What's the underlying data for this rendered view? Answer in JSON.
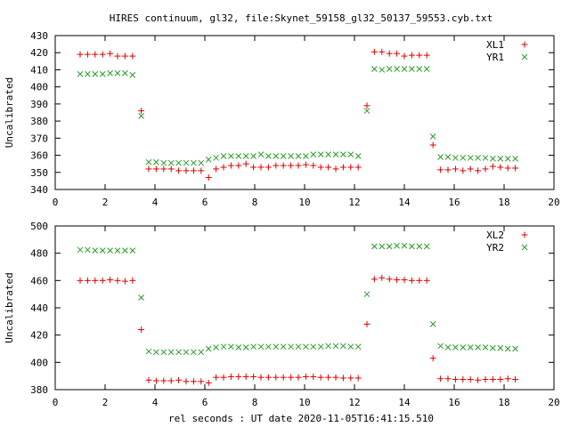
{
  "title": "HIRES continuum, gl32, file:Skynet_59158_gl32_50137_59553.cyb.txt",
  "xlabel": "rel seconds : UT date 2020-11-05T16:41:15.510",
  "colors": {
    "red": "#dd0000",
    "green": "#2a9a2a"
  },
  "chart_data": [
    {
      "type": "scatter",
      "ylabel": "Uncalibrated",
      "xlim": [
        0,
        20
      ],
      "ylim": [
        340,
        430
      ],
      "xticks": [
        0,
        2,
        4,
        6,
        8,
        10,
        12,
        14,
        16,
        18,
        20
      ],
      "yticks": [
        340,
        350,
        360,
        370,
        380,
        390,
        400,
        410,
        420,
        430
      ],
      "legend": "top-right",
      "series": [
        {
          "name": "XL1",
          "marker": "plus",
          "color": "#dd0000",
          "x": [
            1.0,
            1.3,
            1.6,
            1.9,
            2.2,
            2.5,
            2.8,
            3.1,
            3.45,
            3.75,
            4.05,
            4.35,
            4.65,
            4.95,
            5.25,
            5.55,
            5.85,
            6.15,
            6.45,
            6.75,
            7.05,
            7.35,
            7.65,
            7.95,
            8.25,
            8.55,
            8.85,
            9.15,
            9.45,
            9.75,
            10.05,
            10.35,
            10.65,
            10.95,
            11.25,
            11.55,
            11.85,
            12.15,
            12.5,
            12.8,
            13.1,
            13.4,
            13.7,
            14.0,
            14.3,
            14.6,
            14.9,
            15.15,
            15.45,
            15.75,
            16.05,
            16.35,
            16.65,
            16.95,
            17.25,
            17.55,
            17.85,
            18.15,
            18.45
          ],
          "y": [
            419,
            419,
            419,
            419,
            419.5,
            418,
            418,
            418,
            386,
            352,
            352,
            352,
            352,
            351,
            351,
            351,
            351,
            347,
            352,
            353,
            354,
            354,
            355,
            353,
            353,
            353,
            354,
            354,
            354,
            354,
            354.5,
            354,
            353,
            353,
            352,
            353,
            353,
            353,
            389,
            420.5,
            420.5,
            419.5,
            419.5,
            418,
            418.5,
            418.5,
            418.5,
            366,
            351.5,
            351.5,
            352,
            351,
            352,
            351,
            352,
            353.5,
            353,
            352.5,
            352.5
          ]
        },
        {
          "name": "YR1",
          "marker": "cross",
          "color": "#2a9a2a",
          "x": [
            1.0,
            1.3,
            1.6,
            1.9,
            2.2,
            2.5,
            2.8,
            3.1,
            3.45,
            3.75,
            4.05,
            4.35,
            4.65,
            4.95,
            5.25,
            5.55,
            5.85,
            6.15,
            6.45,
            6.75,
            7.05,
            7.35,
            7.65,
            7.95,
            8.25,
            8.55,
            8.85,
            9.15,
            9.45,
            9.75,
            10.05,
            10.35,
            10.65,
            10.95,
            11.25,
            11.55,
            11.85,
            12.15,
            12.5,
            12.8,
            13.1,
            13.4,
            13.7,
            14.0,
            14.3,
            14.6,
            14.9,
            15.15,
            15.45,
            15.75,
            16.05,
            16.35,
            16.65,
            16.95,
            17.25,
            17.55,
            17.85,
            18.15,
            18.45
          ],
          "y": [
            407.5,
            407.5,
            407.5,
            407.5,
            408,
            408,
            408,
            407,
            383,
            356,
            356,
            355.5,
            355.5,
            355.5,
            355.5,
            355.5,
            355.5,
            357.5,
            358.5,
            359.5,
            359.5,
            359.5,
            359.5,
            359.5,
            360.5,
            359.5,
            359.5,
            359.5,
            359.5,
            359.5,
            359.5,
            360.5,
            360.5,
            360.5,
            360.5,
            360.5,
            360.5,
            359.5,
            386,
            410.5,
            410,
            410.5,
            410.5,
            410.5,
            410.5,
            410.5,
            410.5,
            371,
            359,
            359,
            358.5,
            358.5,
            358.5,
            358.5,
            358.5,
            358,
            358,
            358,
            358
          ]
        }
      ]
    },
    {
      "type": "scatter",
      "ylabel": "Uncalibrated",
      "xlim": [
        0,
        20
      ],
      "ylim": [
        380,
        500
      ],
      "xticks": [
        0,
        2,
        4,
        6,
        8,
        10,
        12,
        14,
        16,
        18,
        20
      ],
      "yticks": [
        380,
        400,
        420,
        440,
        460,
        480,
        500
      ],
      "legend": "top-right",
      "series": [
        {
          "name": "XL2",
          "marker": "plus",
          "color": "#dd0000",
          "x": [
            1.0,
            1.3,
            1.6,
            1.9,
            2.2,
            2.5,
            2.8,
            3.1,
            3.45,
            3.75,
            4.05,
            4.35,
            4.65,
            4.95,
            5.25,
            5.55,
            5.85,
            6.15,
            6.45,
            6.75,
            7.05,
            7.35,
            7.65,
            7.95,
            8.25,
            8.55,
            8.85,
            9.15,
            9.45,
            9.75,
            10.05,
            10.35,
            10.65,
            10.95,
            11.25,
            11.55,
            11.85,
            12.15,
            12.5,
            12.8,
            13.1,
            13.4,
            13.7,
            14.0,
            14.3,
            14.6,
            14.9,
            15.15,
            15.45,
            15.75,
            16.05,
            16.35,
            16.65,
            16.95,
            17.25,
            17.55,
            17.85,
            18.15,
            18.45
          ],
          "y": [
            460,
            460,
            460,
            460,
            460.5,
            460,
            459.5,
            460,
            424,
            387,
            386.5,
            386.5,
            386.5,
            387,
            386,
            386,
            386,
            385,
            389,
            389,
            389.5,
            389.5,
            389.5,
            389.5,
            389,
            389,
            389,
            389,
            389,
            389,
            389.5,
            389.5,
            389,
            389,
            389,
            388.5,
            388.5,
            388.5,
            428,
            461,
            462,
            461,
            460.5,
            460.5,
            460,
            460,
            460,
            403,
            388,
            388,
            387.5,
            387.5,
            387.5,
            387,
            387.5,
            387.5,
            387.5,
            388,
            387.5
          ]
        },
        {
          "name": "YR2",
          "marker": "cross",
          "color": "#2a9a2a",
          "x": [
            1.0,
            1.3,
            1.6,
            1.9,
            2.2,
            2.5,
            2.8,
            3.1,
            3.45,
            3.75,
            4.05,
            4.35,
            4.65,
            4.95,
            5.25,
            5.55,
            5.85,
            6.15,
            6.45,
            6.75,
            7.05,
            7.35,
            7.65,
            7.95,
            8.25,
            8.55,
            8.85,
            9.15,
            9.45,
            9.75,
            10.05,
            10.35,
            10.65,
            10.95,
            11.25,
            11.55,
            11.85,
            12.15,
            12.5,
            12.8,
            13.1,
            13.4,
            13.7,
            14.0,
            14.3,
            14.6,
            14.9,
            15.15,
            15.45,
            15.75,
            16.05,
            16.35,
            16.65,
            16.95,
            17.25,
            17.55,
            17.85,
            18.15,
            18.45
          ],
          "y": [
            482.5,
            482.5,
            482,
            482,
            482,
            482,
            482,
            482,
            447.5,
            408,
            407.5,
            407.5,
            407.5,
            407.5,
            407.5,
            407.5,
            407.5,
            410,
            411,
            411.5,
            411.5,
            411,
            411,
            411.5,
            411.5,
            411.5,
            411.5,
            411.5,
            411.5,
            411.5,
            411.5,
            411.5,
            411.5,
            412,
            412,
            412,
            411.5,
            411.5,
            450,
            485,
            485,
            485,
            485.5,
            485.5,
            485,
            485,
            485,
            428,
            412,
            411,
            411,
            411,
            411,
            411,
            411,
            410.5,
            410.5,
            410,
            410
          ]
        }
      ]
    }
  ]
}
